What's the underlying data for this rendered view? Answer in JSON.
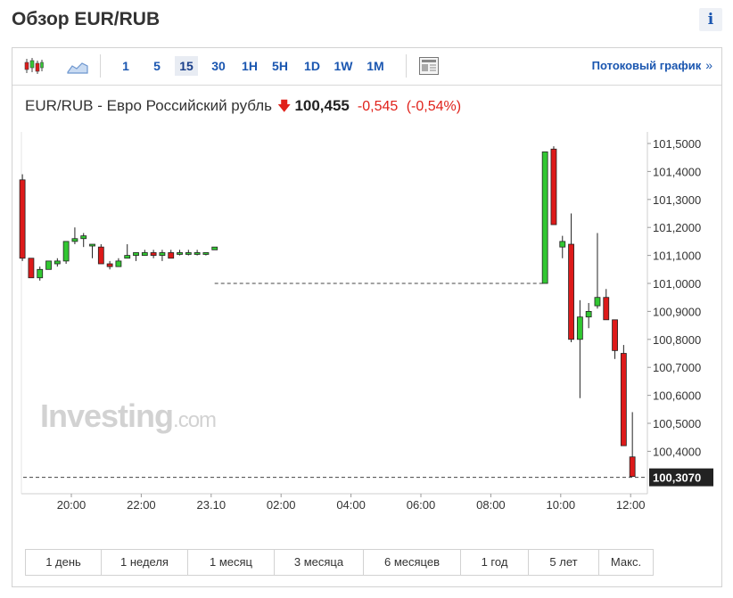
{
  "header": {
    "title": "Обзор EUR/RUB",
    "info_icon": "info-icon"
  },
  "toolbar": {
    "chart_type_icons": [
      "candlestick-chart-icon",
      "area-chart-icon"
    ],
    "intervals": [
      {
        "label": "1",
        "active": false
      },
      {
        "label": "5",
        "active": false
      },
      {
        "label": "15",
        "active": true
      },
      {
        "label": "30",
        "active": false
      },
      {
        "label": "1H",
        "active": false
      },
      {
        "label": "5H",
        "active": false
      },
      {
        "label": "1D",
        "active": false
      },
      {
        "label": "1W",
        "active": false
      },
      {
        "label": "1M",
        "active": false
      }
    ],
    "settings_icon": "newspaper-icon",
    "stream_label": "Потоковый график",
    "stream_chevron": "»"
  },
  "quote": {
    "name": "EUR/RUB - Евро Российский рубль",
    "direction_icon": "down-arrow-icon",
    "last": "100,455",
    "change": "-0,545",
    "change_pct": "(-0,54%)"
  },
  "watermark": {
    "main": "Investing",
    "suffix": ".com"
  },
  "ranges": [
    "1 день",
    "1 неделя",
    "1 месяц",
    "3 месяца",
    "6 месяцев",
    "1 год",
    "5 лет",
    "Макс."
  ],
  "colors": {
    "up": "#32c732",
    "down": "#dd1a1a",
    "link": "#1a56b0",
    "price_tag_bg": "#222222"
  },
  "chart_data": {
    "type": "candlestick",
    "interval": "15",
    "y_ticks": [
      "101,5000",
      "101,4000",
      "101,3000",
      "101,2000",
      "101,1000",
      "101,0000",
      "100,9000",
      "100,8000",
      "100,7000",
      "100,6000",
      "100,5000",
      "100,4000"
    ],
    "ylim": [
      100.28,
      101.52
    ],
    "x_ticks": [
      "20:00",
      "22:00",
      "23.10",
      "02:00",
      "04:00",
      "06:00",
      "08:00",
      "10:00",
      "12:00"
    ],
    "current_price_label": "100,3070",
    "current_price": 100.307,
    "reference_line": 101.0,
    "candles": [
      {
        "t": 18.6,
        "o": 101.37,
        "h": 101.39,
        "l": 101.08,
        "c": 101.09
      },
      {
        "t": 18.85,
        "o": 101.09,
        "h": 101.09,
        "l": 101.02,
        "c": 101.02
      },
      {
        "t": 19.1,
        "o": 101.02,
        "h": 101.06,
        "l": 101.01,
        "c": 101.05
      },
      {
        "t": 19.35,
        "o": 101.05,
        "h": 101.08,
        "l": 101.05,
        "c": 101.08
      },
      {
        "t": 19.6,
        "o": 101.07,
        "h": 101.09,
        "l": 101.06,
        "c": 101.08
      },
      {
        "t": 19.85,
        "o": 101.08,
        "h": 101.15,
        "l": 101.07,
        "c": 101.15
      },
      {
        "t": 20.1,
        "o": 101.15,
        "h": 101.2,
        "l": 101.14,
        "c": 101.16
      },
      {
        "t": 20.35,
        "o": 101.16,
        "h": 101.18,
        "l": 101.13,
        "c": 101.17
      },
      {
        "t": 20.6,
        "o": 101.14,
        "h": 101.14,
        "l": 101.09,
        "c": 101.14
      },
      {
        "t": 20.85,
        "o": 101.13,
        "h": 101.14,
        "l": 101.07,
        "c": 101.07
      },
      {
        "t": 21.1,
        "o": 101.07,
        "h": 101.08,
        "l": 101.05,
        "c": 101.06
      },
      {
        "t": 21.35,
        "o": 101.06,
        "h": 101.09,
        "l": 101.06,
        "c": 101.08
      },
      {
        "t": 21.6,
        "o": 101.09,
        "h": 101.14,
        "l": 101.09,
        "c": 101.1
      },
      {
        "t": 21.85,
        "o": 101.1,
        "h": 101.11,
        "l": 101.08,
        "c": 101.11
      },
      {
        "t": 22.1,
        "o": 101.1,
        "h": 101.12,
        "l": 101.1,
        "c": 101.11
      },
      {
        "t": 22.35,
        "o": 101.11,
        "h": 101.12,
        "l": 101.09,
        "c": 101.1
      },
      {
        "t": 22.6,
        "o": 101.1,
        "h": 101.12,
        "l": 101.08,
        "c": 101.11
      },
      {
        "t": 22.85,
        "o": 101.11,
        "h": 101.12,
        "l": 101.09,
        "c": 101.09
      },
      {
        "t": 23.1,
        "o": 101.11,
        "h": 101.12,
        "l": 101.1,
        "c": 101.11
      },
      {
        "t": 23.35,
        "o": 101.11,
        "h": 101.12,
        "l": 101.1,
        "c": 101.11
      },
      {
        "t": 23.6,
        "o": 101.11,
        "h": 101.12,
        "l": 101.1,
        "c": 101.11
      },
      {
        "t": 23.85,
        "o": 101.11,
        "h": 101.11,
        "l": 101.1,
        "c": 101.11
      },
      {
        "t": 24.1,
        "o": 101.12,
        "h": 101.13,
        "l": 101.12,
        "c": 101.13
      },
      {
        "t": 33.55,
        "o": 101.0,
        "h": 101.47,
        "l": 101.0,
        "c": 101.47
      },
      {
        "t": 33.8,
        "o": 101.48,
        "h": 101.49,
        "l": 101.21,
        "c": 101.21
      },
      {
        "t": 34.05,
        "o": 101.13,
        "h": 101.17,
        "l": 101.09,
        "c": 101.15
      },
      {
        "t": 34.3,
        "o": 101.14,
        "h": 101.25,
        "l": 100.79,
        "c": 100.8
      },
      {
        "t": 34.55,
        "o": 100.8,
        "h": 100.94,
        "l": 100.59,
        "c": 100.88
      },
      {
        "t": 34.8,
        "o": 100.88,
        "h": 100.93,
        "l": 100.84,
        "c": 100.9
      },
      {
        "t": 35.05,
        "o": 100.92,
        "h": 101.18,
        "l": 100.91,
        "c": 100.95
      },
      {
        "t": 35.3,
        "o": 100.95,
        "h": 100.98,
        "l": 100.87,
        "c": 100.87
      },
      {
        "t": 35.55,
        "o": 100.87,
        "h": 100.87,
        "l": 100.73,
        "c": 100.76
      },
      {
        "t": 35.8,
        "o": 100.75,
        "h": 100.78,
        "l": 100.42,
        "c": 100.42
      },
      {
        "t": 36.05,
        "o": 100.38,
        "h": 100.54,
        "l": 100.31,
        "c": 100.31
      }
    ]
  }
}
